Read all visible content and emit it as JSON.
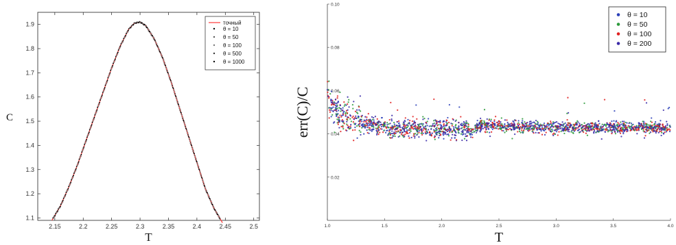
{
  "chart_data": [
    {
      "type": "line",
      "xlabel": "T",
      "ylabel": "C",
      "xlim": [
        2.12,
        2.51
      ],
      "ylim": [
        1.09,
        1.95
      ],
      "xticks": [
        "2.15",
        "2.2",
        "2.25",
        "2.3",
        "2.35",
        "2.4",
        "2.45",
        "2.5"
      ],
      "yticks": [
        "1.1",
        "1.2",
        "1.3",
        "1.4",
        "1.5",
        "1.6",
        "1.7",
        "1.8",
        "1.9"
      ],
      "grid": false,
      "legend_position": "top-right",
      "exact_series": {
        "name": "точный",
        "color": "#ff4040",
        "x": [
          2.145,
          2.16,
          2.175,
          2.19,
          2.205,
          2.22,
          2.235,
          2.25,
          2.265,
          2.28,
          2.29,
          2.3,
          2.31,
          2.325,
          2.34,
          2.355,
          2.37,
          2.385,
          2.4,
          2.415,
          2.43,
          2.445
        ],
        "values": [
          1.09,
          1.15,
          1.23,
          1.32,
          1.42,
          1.52,
          1.62,
          1.72,
          1.81,
          1.88,
          1.905,
          1.91,
          1.895,
          1.84,
          1.76,
          1.66,
          1.55,
          1.44,
          1.33,
          1.22,
          1.14,
          1.08
        ]
      },
      "series": [
        {
          "name": "θ = 10",
          "color": "#000000"
        },
        {
          "name": "θ = 50",
          "color": "#555555"
        },
        {
          "name": "θ = 100",
          "color": "#777777"
        },
        {
          "name": "θ = 500",
          "color": "#333333"
        },
        {
          "name": "θ = 1000",
          "color": "#000000"
        }
      ]
    },
    {
      "type": "scatter",
      "xlabel": "T",
      "ylabel": "err(C)/C",
      "xlim": [
        1.0,
        4.0
      ],
      "ylim": [
        0.0,
        0.1
      ],
      "xticks": [
        "1.0",
        "1.5",
        "2.0",
        "2.5",
        "3.0",
        "3.5",
        "4.0"
      ],
      "yticks": [
        "0.02",
        "0.04",
        "0.06",
        "0.08",
        "0.10"
      ],
      "grid": false,
      "legend_position": "top-right",
      "series": [
        {
          "name": "θ = 10",
          "color": "#2a3fb8"
        },
        {
          "name": "θ = 50",
          "color": "#2c9a3a"
        },
        {
          "name": "θ = 100",
          "color": "#e02020"
        },
        {
          "name": "θ = 200",
          "color": "#3a2aa8"
        }
      ],
      "trend": {
        "x": [
          1.0,
          1.05,
          1.1,
          1.2,
          1.3,
          1.5,
          1.7,
          2.0,
          2.3,
          2.32,
          2.4,
          2.6,
          3.0,
          3.5,
          4.0
        ],
        "values": [
          0.057,
          0.053,
          0.05,
          0.047,
          0.045,
          0.043,
          0.0425,
          0.042,
          0.042,
          0.044,
          0.044,
          0.0435,
          0.043,
          0.043,
          0.043
        ]
      }
    }
  ]
}
